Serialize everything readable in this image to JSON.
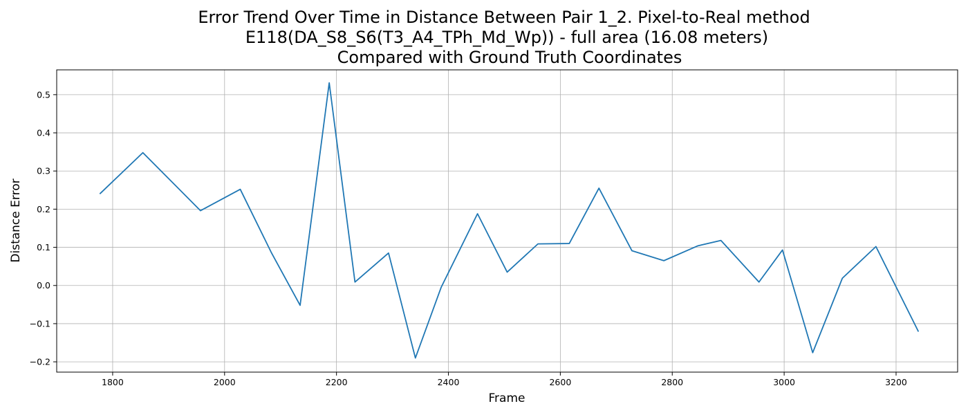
{
  "chart_data": {
    "type": "line",
    "title_lines": [
      "Error Trend Over Time in Distance Between Pair 1_2. Pixel-to-Real method",
      "E118(DA_S8_S6(T3_A4_TPh_Md_Wp)) - full area (16.08 meters)",
      "Compared with Ground Truth Coordinates"
    ],
    "xlabel": "Frame",
    "ylabel": "Distance Error",
    "xlim": [
      1700,
      3310
    ],
    "ylim": [
      -0.227,
      0.565
    ],
    "xticks": [
      1800,
      2000,
      2200,
      2400,
      2600,
      2800,
      3000,
      3200
    ],
    "yticks": [
      -0.2,
      -0.1,
      0.0,
      0.1,
      0.2,
      0.3,
      0.4,
      0.5
    ],
    "ytick_labels": [
      "−0.2",
      "−0.1",
      "0.0",
      "0.1",
      "0.2",
      "0.3",
      "0.4",
      "0.5"
    ],
    "grid": true,
    "series": [
      {
        "color": "#1f77b4",
        "x": [
          1777,
          1854,
          1957,
          2028,
          2084,
          2135,
          2187,
          2233,
          2293,
          2341,
          2387,
          2452,
          2505,
          2560,
          2616,
          2669,
          2728,
          2785,
          2846,
          2887,
          2955,
          2997,
          3051,
          3104,
          3164,
          3240
        ],
        "y": [
          0.24,
          0.348,
          0.196,
          0.252,
          0.085,
          -0.052,
          0.531,
          0.009,
          0.085,
          -0.19,
          -0.005,
          0.188,
          0.035,
          0.109,
          0.11,
          0.255,
          0.091,
          0.065,
          0.104,
          0.118,
          0.009,
          0.093,
          -0.176,
          0.019,
          0.102,
          -0.121
        ]
      }
    ]
  }
}
